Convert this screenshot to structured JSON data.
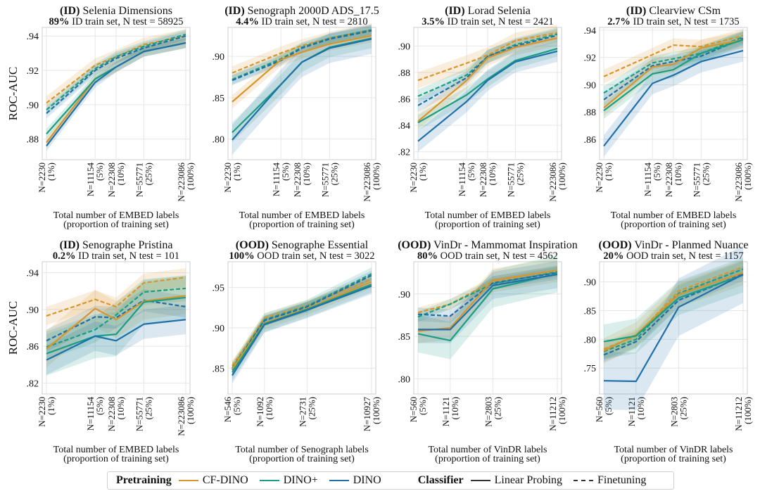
{
  "figure": {
    "ylabel": "ROC-AUC"
  },
  "legend": {
    "pretraining_title": "Pretraining",
    "classifier_title": "Classifier",
    "models": [
      {
        "name": "CF-DINO",
        "color": "#d9952b"
      },
      {
        "name": "DINO+",
        "color": "#1a9e82"
      },
      {
        "name": "DINO",
        "color": "#1f6fa8"
      }
    ],
    "classifiers": [
      {
        "name": "Linear Probing",
        "style": "solid"
      },
      {
        "name": "Finetuning",
        "style": "dashed"
      }
    ]
  },
  "chart_data": [
    {
      "type": "line",
      "title_bold": "(ID)",
      "title": " Selenia Dimensions",
      "subtitle_bold": "89%",
      "subtitle": " ID train set, N test = 58925",
      "xlabel": [
        "Total number of EMBED labels",
        "(proportion of training set)"
      ],
      "xticks": [
        [
          "N=2230",
          "(1%)"
        ],
        [
          "N=11154",
          "(5%)"
        ],
        [
          "N=22308",
          "(10%)"
        ],
        [
          "N=55771",
          "(25%)"
        ],
        [
          "N=223086",
          "(100%)"
        ]
      ],
      "xpos": [
        2230,
        11154,
        22308,
        55771,
        223086
      ],
      "xscale": "log",
      "ylim": [
        0.868,
        0.945
      ],
      "yticks": [
        0.88,
        0.9,
        0.92,
        0.94
      ],
      "yticklabels": [
        ".88",
        ".90",
        ".92",
        ".94"
      ],
      "series": [
        {
          "model": "CF-DINO",
          "classifier": "Finetuning",
          "values": [
            0.901,
            0.923,
            0.928,
            0.935,
            0.94
          ],
          "band": 0.004
        },
        {
          "model": "DINO+",
          "classifier": "Finetuning",
          "values": [
            0.897,
            0.921,
            0.928,
            0.934,
            0.941
          ],
          "band": 0.003
        },
        {
          "model": "DINO",
          "classifier": "Finetuning",
          "values": [
            0.895,
            0.92,
            0.927,
            0.933,
            0.94
          ],
          "band": 0.003
        },
        {
          "model": "CF-DINO",
          "classifier": "Linear Probing",
          "values": [
            0.878,
            0.915,
            0.922,
            0.931,
            0.936
          ],
          "band": 0.003
        },
        {
          "model": "DINO+",
          "classifier": "Linear Probing",
          "values": [
            0.883,
            0.915,
            0.922,
            0.931,
            0.936
          ],
          "band": 0.003
        },
        {
          "model": "DINO",
          "classifier": "Linear Probing",
          "values": [
            0.876,
            0.913,
            0.922,
            0.931,
            0.936
          ],
          "band": 0.003
        }
      ]
    },
    {
      "type": "line",
      "title_bold": "(ID)",
      "title": " Senograph 2000D ADS_17.5",
      "subtitle_bold": "4.4%",
      "subtitle": " ID train set, N test = 2810",
      "xlabel": [
        "Total number of EMBED labels",
        "(proportion of training set)"
      ],
      "xticks": [
        [
          "N=2230",
          "(1%)"
        ],
        [
          "N=11154",
          "(5%)"
        ],
        [
          "N=22308",
          "(10%)"
        ],
        [
          "N=55771",
          "(25%)"
        ],
        [
          "N=223086",
          "(100%)"
        ]
      ],
      "xpos": [
        2230,
        11154,
        22308,
        55771,
        223086
      ],
      "xscale": "log",
      "ylim": [
        0.775,
        0.935
      ],
      "yticks": [
        0.8,
        0.85,
        0.9
      ],
      "yticklabels": [
        ".80",
        ".85",
        ".90"
      ],
      "series": [
        {
          "model": "CF-DINO",
          "classifier": "Finetuning",
          "values": [
            0.88,
            0.904,
            0.913,
            0.922,
            0.932
          ],
          "band": 0.008
        },
        {
          "model": "DINO+",
          "classifier": "Finetuning",
          "values": [
            0.872,
            0.897,
            0.911,
            0.922,
            0.932
          ],
          "band": 0.006
        },
        {
          "model": "DINO",
          "classifier": "Finetuning",
          "values": [
            0.871,
            0.895,
            0.91,
            0.921,
            0.931
          ],
          "band": 0.006
        },
        {
          "model": "CF-DINO",
          "classifier": "Linear Probing",
          "values": [
            0.845,
            0.896,
            0.905,
            0.915,
            0.925
          ],
          "band": 0.008
        },
        {
          "model": "DINO+",
          "classifier": "Linear Probing",
          "values": [
            0.808,
            0.866,
            0.893,
            0.911,
            0.922
          ],
          "band": 0.012
        },
        {
          "model": "DINO",
          "classifier": "Linear Probing",
          "values": [
            0.799,
            0.866,
            0.893,
            0.91,
            0.921
          ],
          "band": 0.018
        }
      ]
    },
    {
      "type": "line",
      "title_bold": "(ID)",
      "title": " Lorad Selenia",
      "subtitle_bold": "3.5%",
      "subtitle": " ID train set, N test = 2421",
      "xlabel": [
        "Total number of EMBED labels",
        "(proportion of training set)"
      ],
      "xticks": [
        [
          "N=2230",
          "(1%)"
        ],
        [
          "N=11154",
          "(5%)"
        ],
        [
          "N=22308",
          "(10%)"
        ],
        [
          "N=55771",
          "(25%)"
        ],
        [
          "N=223086",
          "(100%)"
        ]
      ],
      "xpos": [
        2230,
        11154,
        22308,
        55771,
        223086
      ],
      "xscale": "log",
      "ylim": [
        0.814,
        0.914
      ],
      "yticks": [
        0.82,
        0.84,
        0.86,
        0.88,
        0.9
      ],
      "yticklabels": [
        ".82",
        ".84",
        ".86",
        ".88",
        ".90"
      ],
      "series": [
        {
          "model": "CF-DINO",
          "classifier": "Finetuning",
          "values": [
            0.874,
            0.887,
            0.893,
            0.904,
            0.91
          ],
          "band": 0.006
        },
        {
          "model": "DINO+",
          "classifier": "Finetuning",
          "values": [
            0.862,
            0.878,
            0.892,
            0.901,
            0.909
          ],
          "band": 0.005
        },
        {
          "model": "DINO",
          "classifier": "Finetuning",
          "values": [
            0.855,
            0.876,
            0.892,
            0.9,
            0.908
          ],
          "band": 0.005
        },
        {
          "model": "CF-DINO",
          "classifier": "Linear Probing",
          "values": [
            0.843,
            0.874,
            0.891,
            0.899,
            0.906
          ],
          "band": 0.006
        },
        {
          "model": "DINO+",
          "classifier": "Linear Probing",
          "values": [
            0.842,
            0.863,
            0.875,
            0.889,
            0.898
          ],
          "band": 0.006
        },
        {
          "model": "DINO",
          "classifier": "Linear Probing",
          "values": [
            0.828,
            0.858,
            0.874,
            0.888,
            0.896
          ],
          "band": 0.008
        }
      ]
    },
    {
      "type": "line",
      "title_bold": "(ID)",
      "title": " Clearview CSm",
      "subtitle_bold": "2.7%",
      "subtitle": " ID train set, N test = 1735",
      "xlabel": [
        "Total number of EMBED labels",
        "(proportion of training set)"
      ],
      "xticks": [
        [
          "N=2230",
          "(1%)"
        ],
        [
          "N=11154",
          "(5%)"
        ],
        [
          "N=22308",
          "(10%)"
        ],
        [
          "N=55771",
          "(25%)"
        ],
        [
          "N=223086",
          "(100%)"
        ]
      ],
      "xpos": [
        2230,
        11154,
        22308,
        55771,
        223086
      ],
      "xscale": "log",
      "ylim": [
        0.845,
        0.942
      ],
      "yticks": [
        0.86,
        0.88,
        0.9,
        0.92,
        0.94
      ],
      "yticklabels": [
        ".86",
        ".88",
        ".90",
        ".92",
        ".94"
      ],
      "series": [
        {
          "model": "CF-DINO",
          "classifier": "Finetuning",
          "values": [
            0.906,
            0.922,
            0.929,
            0.928,
            0.936
          ],
          "band": 0.005
        },
        {
          "model": "DINO+",
          "classifier": "Finetuning",
          "values": [
            0.894,
            0.916,
            0.919,
            0.923,
            0.935
          ],
          "band": 0.005
        },
        {
          "model": "DINO",
          "classifier": "Finetuning",
          "values": [
            0.889,
            0.914,
            0.917,
            0.921,
            0.934
          ],
          "band": 0.005
        },
        {
          "model": "CF-DINO",
          "classifier": "Linear Probing",
          "values": [
            0.883,
            0.913,
            0.915,
            0.927,
            0.933
          ],
          "band": 0.006
        },
        {
          "model": "DINO+",
          "classifier": "Linear Probing",
          "values": [
            0.881,
            0.908,
            0.911,
            0.923,
            0.933
          ],
          "band": 0.006
        },
        {
          "model": "DINO",
          "classifier": "Linear Probing",
          "values": [
            0.855,
            0.901,
            0.907,
            0.917,
            0.925
          ],
          "band": 0.008
        }
      ]
    },
    {
      "type": "line",
      "title_bold": "(ID)",
      "title": " Senographe Pristina",
      "subtitle_bold": "0.2%",
      "subtitle": " ID train set, N test = 101",
      "xlabel": [
        "Total number of EMBED labels",
        "(proportion of training set)"
      ],
      "xticks": [
        [
          "N=2230",
          "(1%)"
        ],
        [
          "N=11154",
          "(5%)"
        ],
        [
          "N=22308",
          "(10%)"
        ],
        [
          "N=55771",
          "(25%)"
        ],
        [
          "N=223086",
          "(100%)"
        ]
      ],
      "xpos": [
        2230,
        11154,
        22308,
        55771,
        223086
      ],
      "xscale": "log",
      "ylim": [
        0.808,
        0.952
      ],
      "yticks": [
        0.82,
        0.86,
        0.9,
        0.94
      ],
      "yticklabels": [
        ".82",
        ".86",
        ".90",
        ".94"
      ],
      "series": [
        {
          "model": "CF-DINO",
          "classifier": "Finetuning",
          "values": [
            0.893,
            0.911,
            0.903,
            0.929,
            0.935
          ],
          "band": 0.01
        },
        {
          "model": "DINO+",
          "classifier": "Finetuning",
          "values": [
            0.859,
            0.878,
            0.894,
            0.919,
            0.923
          ],
          "band": 0.014
        },
        {
          "model": "DINO",
          "classifier": "Finetuning",
          "values": [
            0.866,
            0.892,
            0.891,
            0.91,
            0.903
          ],
          "band": 0.012
        },
        {
          "model": "CF-DINO",
          "classifier": "Linear Probing",
          "values": [
            0.857,
            0.901,
            0.889,
            0.909,
            0.915
          ],
          "band": 0.02
        },
        {
          "model": "DINO+",
          "classifier": "Linear Probing",
          "values": [
            0.852,
            0.871,
            0.873,
            0.908,
            0.913
          ],
          "band": 0.024
        },
        {
          "model": "DINO",
          "classifier": "Linear Probing",
          "values": [
            0.845,
            0.871,
            0.866,
            0.884,
            0.889
          ],
          "band": 0.016
        }
      ]
    },
    {
      "type": "line",
      "title_bold": "(OOD)",
      "title": " Senographe Essential",
      "subtitle_bold": "100%",
      "subtitle": " OOD train set, N test = 3022",
      "xlabel": [
        "Total number of Senograph labels",
        "(proportion of training set)"
      ],
      "xticks": [
        [
          "N=546",
          "(5%)"
        ],
        [
          "N=1092",
          "(10%)"
        ],
        [
          "N=2731",
          "(25%)"
        ],
        [
          "N=10927",
          "(100%)"
        ]
      ],
      "xpos": [
        546,
        1092,
        2731,
        10927
      ],
      "xscale": "log",
      "ylim": [
        0.818,
        0.982
      ],
      "yticks": [
        0.85,
        0.9,
        0.95
      ],
      "yticklabels": [
        ".85",
        ".90",
        ".95"
      ],
      "series": [
        {
          "model": "CF-DINO",
          "classifier": "Finetuning",
          "values": [
            0.853,
            0.912,
            0.928,
            0.96
          ],
          "band": 0.006
        },
        {
          "model": "DINO+",
          "classifier": "Finetuning",
          "values": [
            0.85,
            0.91,
            0.927,
            0.967
          ],
          "band": 0.008
        },
        {
          "model": "DINO",
          "classifier": "Finetuning",
          "values": [
            0.848,
            0.909,
            0.926,
            0.965
          ],
          "band": 0.006
        },
        {
          "model": "CF-DINO",
          "classifier": "Linear Probing",
          "values": [
            0.849,
            0.906,
            0.924,
            0.957
          ],
          "band": 0.008
        },
        {
          "model": "DINO+",
          "classifier": "Linear Probing",
          "values": [
            0.845,
            0.905,
            0.923,
            0.954
          ],
          "band": 0.01
        },
        {
          "model": "DINO",
          "classifier": "Linear Probing",
          "values": [
            0.841,
            0.904,
            0.922,
            0.952
          ],
          "band": 0.01
        }
      ]
    },
    {
      "type": "line",
      "title_bold": "(OOD)",
      "title": " VinDr - Mammomat Inspiration",
      "subtitle_bold": "80%",
      "subtitle": " OOD train set, N test = 4562",
      "xlabel": [
        "Total number of VinDR labels",
        "(proportion of training set)"
      ],
      "xticks": [
        [
          "N=560",
          "(5%)"
        ],
        [
          "N=1121",
          "(10%)"
        ],
        [
          "N=2803",
          "(25%)"
        ],
        [
          "N=11212",
          "(100%)"
        ]
      ],
      "xpos": [
        560,
        1121,
        2803,
        11212
      ],
      "xscale": "log",
      "ylim": [
        0.782,
        0.938
      ],
      "yticks": [
        0.8,
        0.85,
        0.9
      ],
      "yticklabels": [
        ".80",
        ".85",
        ".90"
      ],
      "series": [
        {
          "model": "CF-DINO",
          "classifier": "Finetuning",
          "values": [
            0.878,
            0.888,
            0.915,
            0.928
          ],
          "band": 0.006
        },
        {
          "model": "DINO+",
          "classifier": "Finetuning",
          "values": [
            0.873,
            0.888,
            0.912,
            0.926
          ],
          "band": 0.006
        },
        {
          "model": "DINO",
          "classifier": "Finetuning",
          "values": [
            0.876,
            0.874,
            0.913,
            0.925
          ],
          "band": 0.008
        },
        {
          "model": "CF-DINO",
          "classifier": "Linear Probing",
          "values": [
            0.856,
            0.86,
            0.916,
            0.928
          ],
          "band": 0.014
        },
        {
          "model": "DINO+",
          "classifier": "Linear Probing",
          "values": [
            0.853,
            0.845,
            0.906,
            0.924
          ],
          "band": 0.022
        },
        {
          "model": "DINO",
          "classifier": "Linear Probing",
          "values": [
            0.858,
            0.858,
            0.91,
            0.923
          ],
          "band": 0.016
        }
      ]
    },
    {
      "type": "line",
      "title_bold": "(OOD)",
      "title": " VinDr - Planmed Nuance",
      "subtitle_bold": "20%",
      "subtitle": " OOD train set, N test = 1157",
      "xlabel": [
        "Total number of VinDR labels",
        "(proportion of training set)"
      ],
      "xticks": [
        [
          "N=560",
          "(5%)"
        ],
        [
          "N=1121",
          "(10%)"
        ],
        [
          "N=2803",
          "(25%)"
        ],
        [
          "N=11212",
          "(100%)"
        ]
      ],
      "xpos": [
        560,
        1121,
        2803,
        11212
      ],
      "xscale": "log",
      "ylim": [
        0.705,
        0.935
      ],
      "yticks": [
        0.75,
        0.8,
        0.85,
        0.9
      ],
      "yticklabels": [
        ".75",
        ".80",
        ".85",
        ".90"
      ],
      "series": [
        {
          "model": "CF-DINO",
          "classifier": "Finetuning",
          "values": [
            0.783,
            0.806,
            0.884,
            0.926
          ],
          "band": 0.012
        },
        {
          "model": "DINO+",
          "classifier": "Finetuning",
          "values": [
            0.779,
            0.8,
            0.88,
            0.922
          ],
          "band": 0.014
        },
        {
          "model": "DINO",
          "classifier": "Finetuning",
          "values": [
            0.773,
            0.796,
            0.868,
            0.914
          ],
          "band": 0.012
        },
        {
          "model": "CF-DINO",
          "classifier": "Linear Probing",
          "values": [
            0.78,
            0.808,
            0.878,
            0.916
          ],
          "band": 0.022
        },
        {
          "model": "DINO+",
          "classifier": "Linear Probing",
          "values": [
            0.796,
            0.806,
            0.872,
            0.912
          ],
          "band": 0.03
        },
        {
          "model": "DINO",
          "classifier": "Linear Probing",
          "values": [
            0.728,
            0.727,
            0.856,
            0.913
          ],
          "band": 0.05
        }
      ]
    }
  ]
}
